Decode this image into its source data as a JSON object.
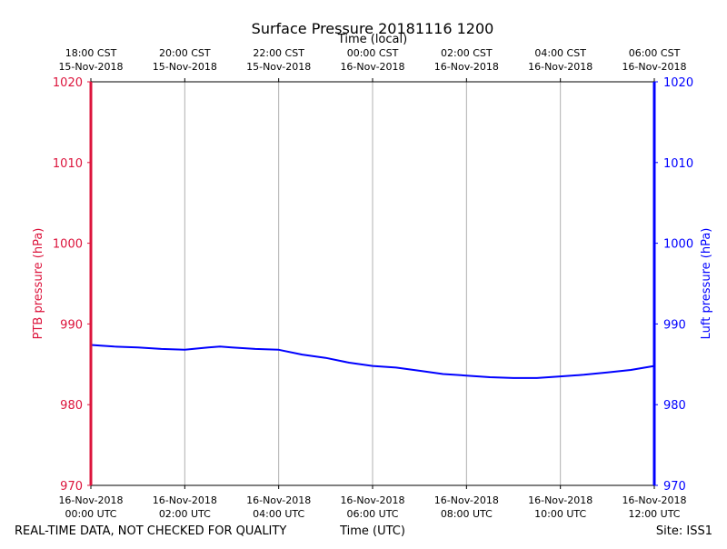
{
  "chart_data": {
    "type": "line",
    "title": "Surface Pressure 20181116 1200",
    "top_axis_label": "Time (local)",
    "xlabel": "Time (UTC)",
    "ylabel_left": "PTB pressure (hPa)",
    "ylabel_right": "Luft pressure (hPa)",
    "footer_left": "REAL-TIME DATA, NOT CHECKED FOR QUALITY",
    "footer_right": "Site: ISS1",
    "xlim_hours": [
      0,
      12
    ],
    "ylim": [
      970,
      1020
    ],
    "yticks": [
      970,
      980,
      990,
      1000,
      1010,
      1020
    ],
    "grid": "vertical",
    "bottom_ticks": [
      {
        "date": "16-Nov-2018",
        "time": "00:00 UTC"
      },
      {
        "date": "16-Nov-2018",
        "time": "02:00 UTC"
      },
      {
        "date": "16-Nov-2018",
        "time": "04:00 UTC"
      },
      {
        "date": "16-Nov-2018",
        "time": "06:00 UTC"
      },
      {
        "date": "16-Nov-2018",
        "time": "08:00 UTC"
      },
      {
        "date": "16-Nov-2018",
        "time": "10:00 UTC"
      },
      {
        "date": "16-Nov-2018",
        "time": "12:00 UTC"
      }
    ],
    "top_ticks": [
      {
        "time": "18:00 CST",
        "date": "15-Nov-2018"
      },
      {
        "time": "20:00 CST",
        "date": "15-Nov-2018"
      },
      {
        "time": "22:00 CST",
        "date": "15-Nov-2018"
      },
      {
        "time": "00:00 CST",
        "date": "16-Nov-2018"
      },
      {
        "time": "02:00 CST",
        "date": "16-Nov-2018"
      },
      {
        "time": "04:00 CST",
        "date": "16-Nov-2018"
      },
      {
        "time": "06:00 CST",
        "date": "16-Nov-2018"
      }
    ],
    "series": [
      {
        "name": "Luft pressure",
        "color": "#0000ff",
        "x_hours": [
          0,
          0.5,
          1.0,
          1.5,
          2.0,
          2.5,
          2.75,
          3.0,
          3.5,
          4.0,
          4.5,
          5.0,
          5.5,
          6.0,
          6.5,
          7.0,
          7.5,
          8.0,
          8.5,
          9.0,
          9.5,
          10.0,
          10.5,
          11.0,
          11.5,
          12.0
        ],
        "values": [
          987.4,
          987.2,
          987.1,
          986.9,
          986.8,
          987.1,
          987.2,
          987.1,
          986.9,
          986.8,
          986.2,
          985.8,
          985.2,
          984.8,
          984.6,
          984.2,
          983.8,
          983.6,
          983.4,
          983.3,
          983.3,
          983.5,
          983.7,
          984.0,
          984.3,
          984.8
        ]
      },
      {
        "name": "PTB pressure",
        "color": "#dc143c",
        "x_hours": [],
        "values": []
      }
    ]
  },
  "colors": {
    "left_axis": "#dc143c",
    "right_axis": "#0000ff",
    "grid": "#b0b0b0",
    "text": "#000000"
  }
}
